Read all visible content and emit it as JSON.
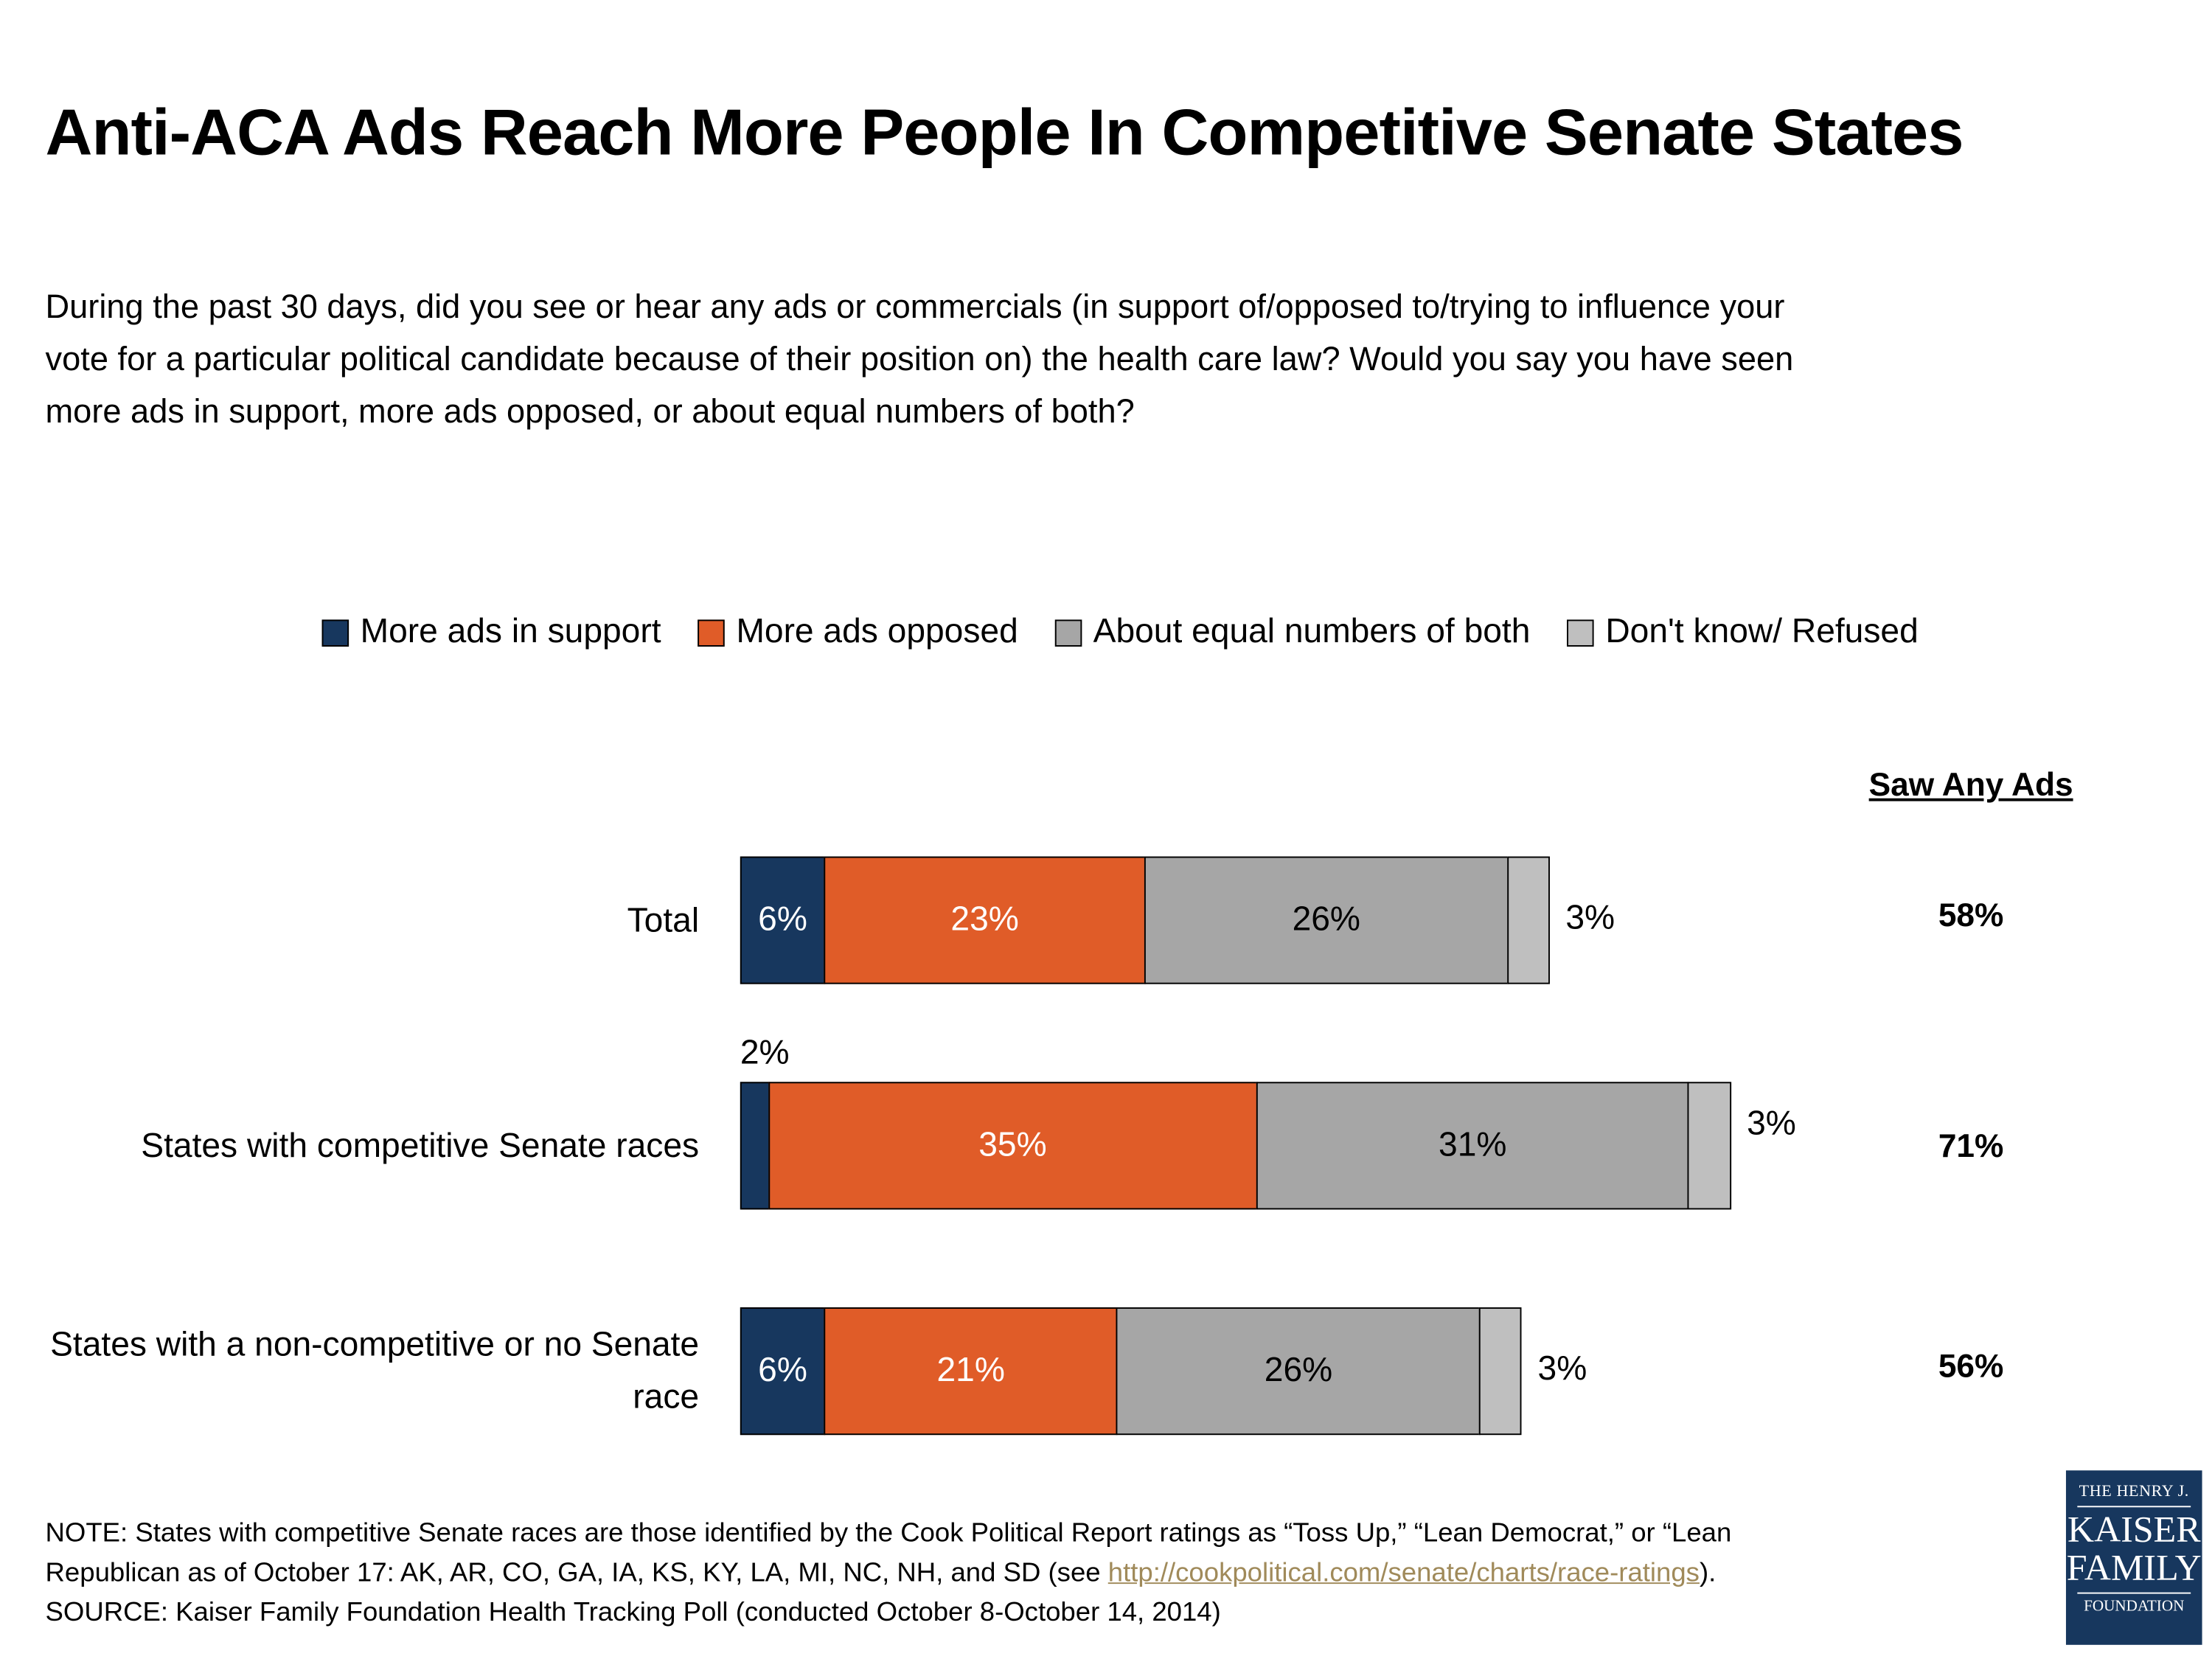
{
  "title": "Anti-ACA Ads Reach More People In Competitive Senate States",
  "question_lines": [
    "During the past 30 days, did you see or hear any ads or commercials (in support of/opposed to/trying to influence your",
    "vote for a particular political candidate because of their position on) the health care law? Would you say you have seen",
    "more ads in support, more ads opposed, or about equal numbers of both?"
  ],
  "saw_any_header": "Saw Any Ads",
  "chart_data": {
    "type": "bar",
    "orientation": "horizontal",
    "stacked": true,
    "categories": [
      "Total",
      "States with competitive Senate races",
      "States with a non-competitive or no Senate race"
    ],
    "series": [
      {
        "name": "More ads in support",
        "color": "#17375e",
        "values": [
          6,
          2,
          6
        ],
        "labels": [
          "6%",
          "2%",
          "6%"
        ]
      },
      {
        "name": "More ads opposed",
        "color": "#e05c28",
        "values": [
          23,
          35,
          21
        ],
        "labels": [
          "23%",
          "35%",
          "21%"
        ]
      },
      {
        "name": "About equal numbers of both",
        "color": "#a6a6a6",
        "values": [
          26,
          31,
          26
        ],
        "labels": [
          "26%",
          "31%",
          "26%"
        ]
      },
      {
        "name": "Don't know/ Refused",
        "color": "#bfbfbf",
        "values": [
          3,
          3,
          3
        ],
        "labels": [
          "3%",
          "3%",
          "3%"
        ]
      }
    ],
    "saw_any_ads": [
      "58%",
      "71%",
      "56%"
    ],
    "legend_position": "top",
    "grid": false
  },
  "notes": {
    "line1": "NOTE: States with competitive Senate races are those identified by the Cook Political Report ratings as “Toss Up,” “Lean Democrat,” or “Lean",
    "line2_pre": "Republican as of October 17: AK, AR, CO, GA, IA, KS, KY, LA, MI, NC, NH, and SD (see ",
    "link": "http://cookpolitical.com/senate/charts/race-ratings",
    "line2_post": ").",
    "source": "SOURCE: Kaiser Family Foundation Health Tracking Poll (conducted October 8-October 14, 2014)"
  },
  "logo": {
    "line1": "THE HENRY J.",
    "line2": "KAISER",
    "line3": "FAMILY",
    "line4": "FOUNDATION"
  }
}
